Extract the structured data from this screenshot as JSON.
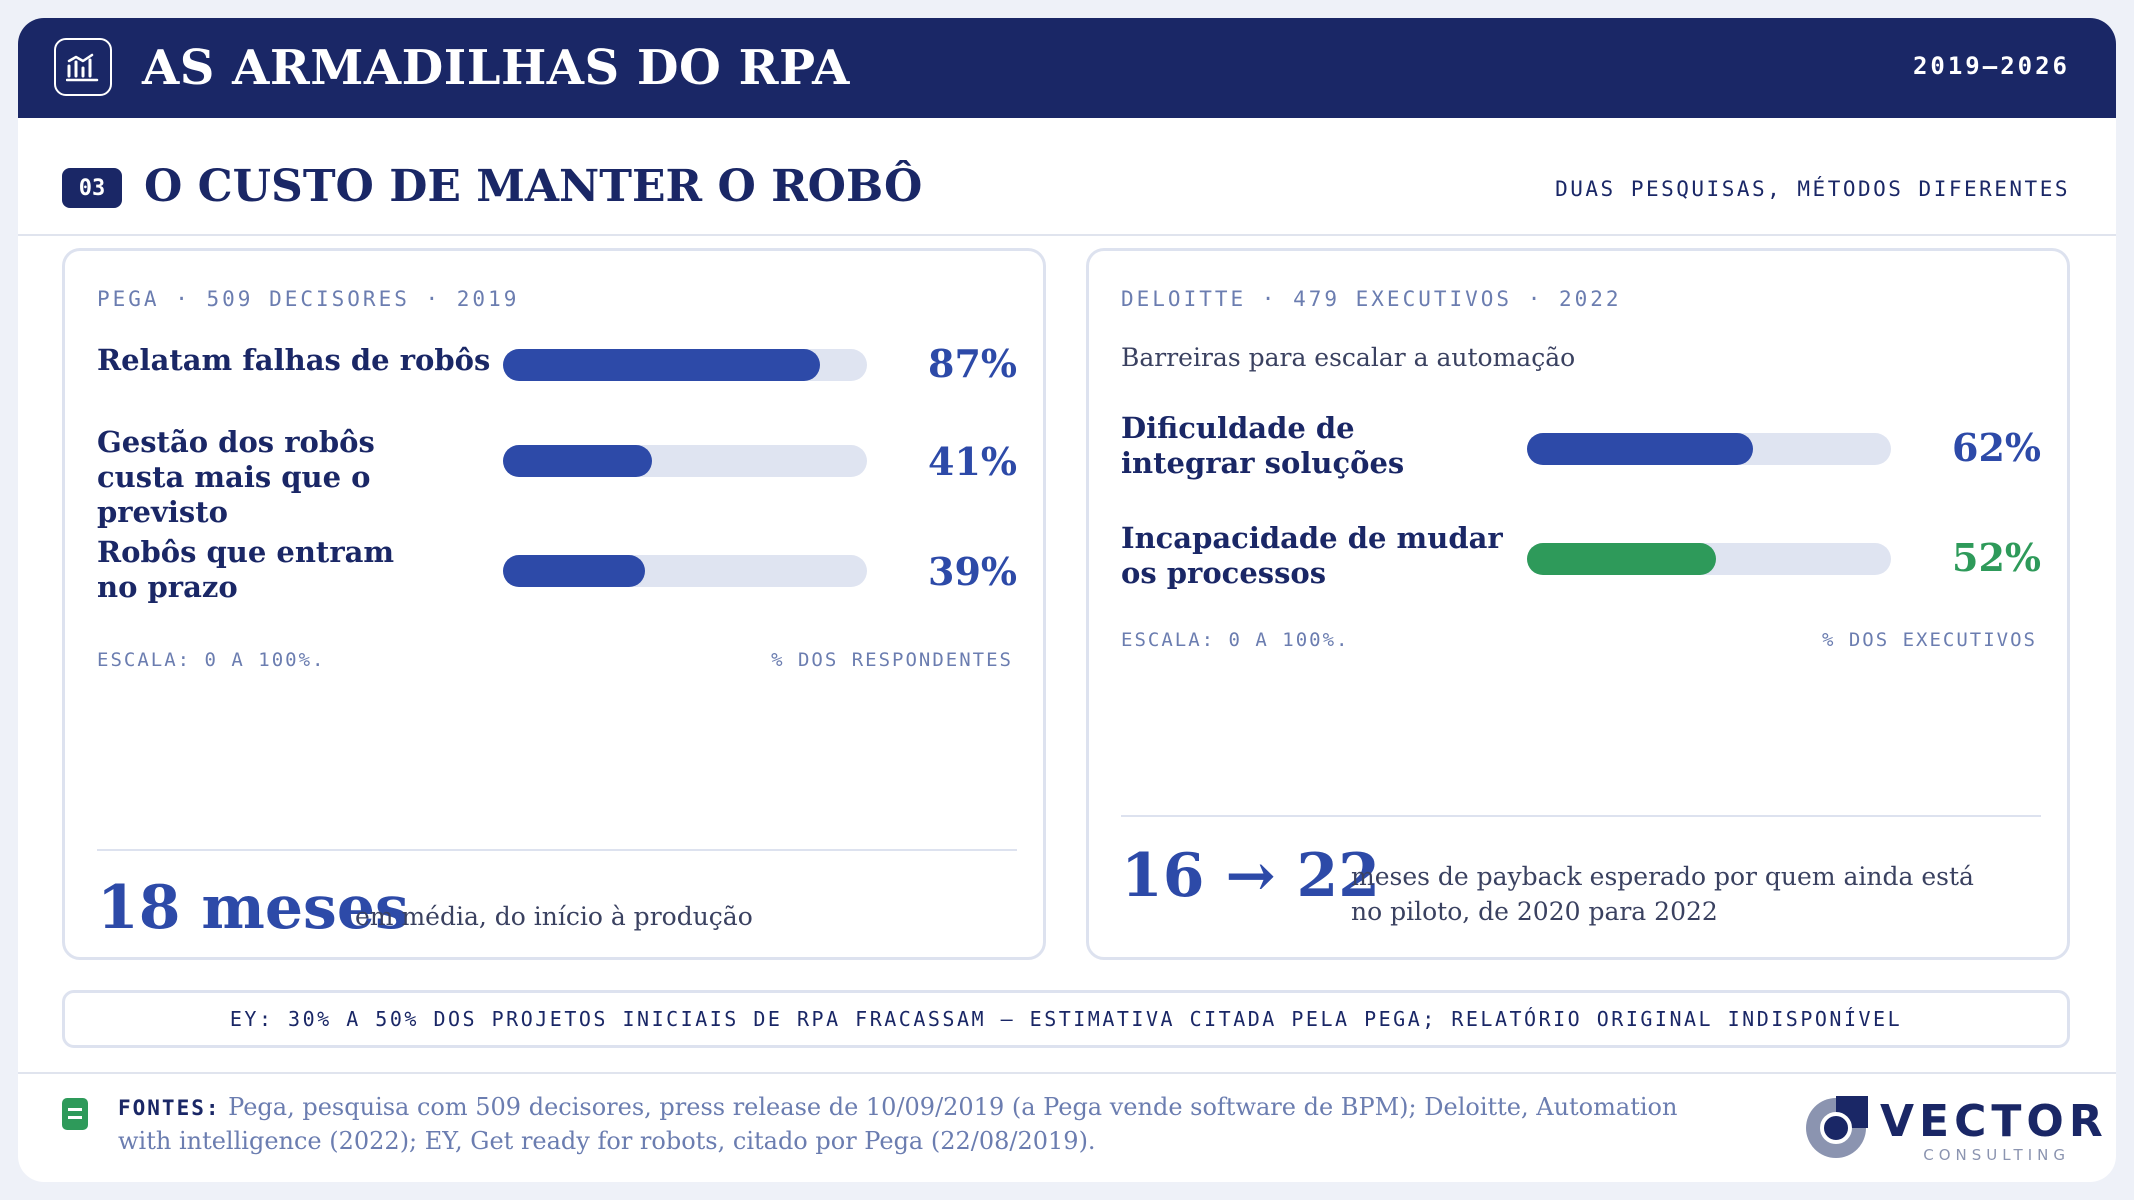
{
  "header": {
    "title": "AS ARMADILHAS DO RPA",
    "period": "2019–2026",
    "logo_icon": "bar-chart-icon"
  },
  "section": {
    "number": "03",
    "title": "O CUSTO DE MANTER O ROBÔ",
    "subtitle": "DUAS PESQUISAS, MÉTODOS DIFERENTES"
  },
  "left_panel": {
    "meta": "PEGA · 509 DECISORES · 2019",
    "rows": [
      {
        "label": "Relatam falhas de robôs",
        "value": "87%",
        "fraction": 0.87,
        "color": "#2d4aa8"
      },
      {
        "label": "Gestão dos robôs custa mais que o previsto",
        "value": "41%",
        "fraction": 0.41,
        "color": "#2d4aa8"
      },
      {
        "label": "Robôs que entram no prazo",
        "value": "39%",
        "fraction": 0.39,
        "color": "#2d4aa8"
      }
    ],
    "scale_note": "ESCALA: 0 A 100%.",
    "unit_note": "% DOS RESPONDENTES",
    "highlight_value": "18 meses",
    "highlight_desc": "em média, do início à produção"
  },
  "right_panel": {
    "meta": "DELOITTE · 479 EXECUTIVOS · 2022",
    "note": "Barreiras para escalar a automação",
    "rows": [
      {
        "label": "Dificuldade de integrar soluções",
        "value": "62%",
        "fraction": 0.62,
        "color": "#2d4aa8"
      },
      {
        "label": "Incapacidade de mudar os processos",
        "value": "52%",
        "fraction": 0.52,
        "color": "#2e9a5a"
      }
    ],
    "scale_note": "ESCALA: 0 A 100%.",
    "unit_note": "% DOS EXECUTIVOS",
    "highlight_value": "16 → 22",
    "highlight_desc": "meses de payback esperado por quem ainda está no piloto, de 2020 para 2022"
  },
  "banner": {
    "text": "EY: 30% A 50% DOS PROJETOS INICIAIS DE RPA FRACASSAM — ESTIMATIVA CITADA PELA PEGA; RELATÓRIO ORIGINAL INDISPONÍVEL"
  },
  "footer": {
    "sources_label": "FONTES:",
    "sources_text": "Pega, pesquisa com 509 decisores, press release de 10/09/2019 (a Pega vende software de BPM); Deloitte, Automation with intelligence (2022); EY, Get ready for robots, citado por Pega (22/08/2019).",
    "brand_name": "VECTOR",
    "brand_sub": "CONSULTING",
    "brand_icon": "vector-logo-icon",
    "sources_icon": "document-icon"
  },
  "colors": {
    "navy": "#1a2766",
    "bar_blue": "#2d4aa8",
    "bar_green": "#2e9a5a",
    "track": "#dfe4f1"
  }
}
